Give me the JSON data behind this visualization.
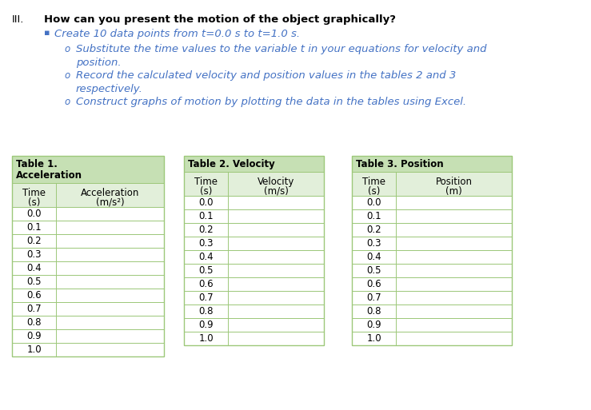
{
  "title_roman": "III.",
  "title_question": "How can you present the motion of the object graphically?",
  "bullet_main": "Create 10 data points from t=0.0 s to t=1.0 s.",
  "sub_bullet1_line1": "Substitute the time values to the variable t in your equations for velocity and",
  "sub_bullet1_line2": "position.",
  "sub_bullet2_line1": "Record the calculated velocity and position values in the tables 2 and 3",
  "sub_bullet2_line2": "respectively.",
  "sub_bullet3": "Construct graphs of motion by plotting the data in the tables using Excel.",
  "table1_title1": "Table 1.",
  "table1_title2": "Acceleration",
  "table1_col1": "Time",
  "table1_col1b": "(s)",
  "table1_col2": "Acceleration",
  "table1_col2b": "(m/s²)",
  "table2_title": "Table 2. Velocity",
  "table2_col1": "Time",
  "table2_col1b": "(s)",
  "table2_col2": "Velocity",
  "table2_col2b": "(m/s)",
  "table3_title": "Table 3. Position",
  "table3_col1": "Time",
  "table3_col1b": "(s)",
  "table3_col2": "Position",
  "table3_col2b": "(m)",
  "time_values": [
    "0.0",
    "0.1",
    "0.2",
    "0.3",
    "0.4",
    "0.5",
    "0.6",
    "0.7",
    "0.8",
    "0.9",
    "1.0"
  ],
  "header_color": "#8dc063",
  "header_color_light": "#c6e0b4",
  "subheader_color": "#e2efda",
  "bg_color": "#ffffff",
  "blue_color": "#4472c4",
  "black_color": "#000000",
  "border_color": "#9dc87a",
  "gray_border": "#aaaaaa"
}
